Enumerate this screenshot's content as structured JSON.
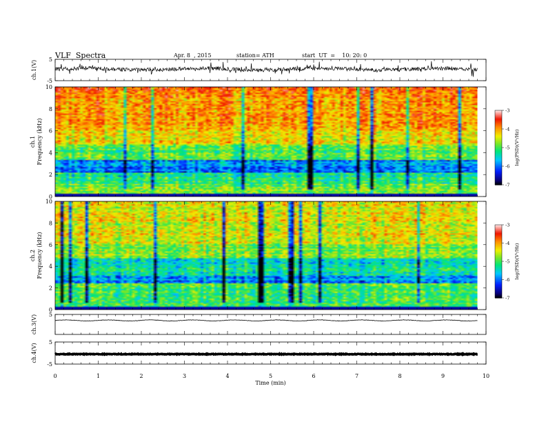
{
  "header": {
    "title": "VLF  Spectra",
    "date": "Apr. 8  , 2015",
    "station": "station= ATH",
    "start": "start  UT  =    10: 20: 0"
  },
  "chart_data": {
    "type": "heatmap",
    "xlabel": "Time  (min)",
    "xlim": [
      0,
      10
    ],
    "x_ticks": [
      "0",
      "1",
      "2",
      "3",
      "4",
      "5",
      "6",
      "7",
      "8",
      "9",
      "10"
    ],
    "data_end_min": 9.8,
    "panels": [
      {
        "id": "ch1-waveform",
        "type": "line",
        "ylabel": "ch.1(V)",
        "ylim": [
          -5,
          5
        ],
        "y_ticks": [
          "5",
          "-5"
        ],
        "level": 0.4,
        "noise": "high"
      },
      {
        "id": "ch1-spectrogram",
        "type": "heatmap",
        "ylabel": "Frequency  (kHz)",
        "channel_label": "ch.1",
        "ylim": [
          0,
          10
        ],
        "y_ticks": [
          "0",
          "2",
          "4",
          "6",
          "8",
          "10"
        ],
        "colorbar": {
          "label": "log(PSD)(V²/Hz)",
          "range": [
            -7,
            -3
          ],
          "ticks": [
            "-3",
            "-4",
            "-5",
            "-6",
            "-7"
          ],
          "colormap": "jet-like"
        }
      },
      {
        "id": "ch2-spectrogram",
        "type": "heatmap",
        "ylabel": "Frequency  (kHz)",
        "channel_label": "ch.2",
        "ylim": [
          0,
          10
        ],
        "y_ticks": [
          "0",
          "2",
          "4",
          "6",
          "8",
          "10"
        ],
        "colorbar": {
          "label": "log(PSD)(V²/Hz)",
          "range": [
            -7,
            -3
          ],
          "ticks": [
            "-3",
            "-4",
            "-5",
            "-6",
            "-7"
          ],
          "colormap": "jet-like"
        }
      },
      {
        "id": "ch3-waveform",
        "type": "line",
        "ylabel": "ch.3(V)",
        "ylim": [
          -5,
          5
        ],
        "y_ticks": [
          "5"
        ],
        "level": 2.0,
        "noise": "low"
      },
      {
        "id": "ch4-waveform",
        "type": "line",
        "ylabel": "ch.4(V)",
        "ylim": [
          -5,
          5
        ],
        "y_ticks": [
          "5",
          "-5"
        ],
        "level": -0.5,
        "noise": "thick"
      }
    ],
    "colors": {
      "axis": "#000000",
      "background": "#ffffff"
    }
  }
}
